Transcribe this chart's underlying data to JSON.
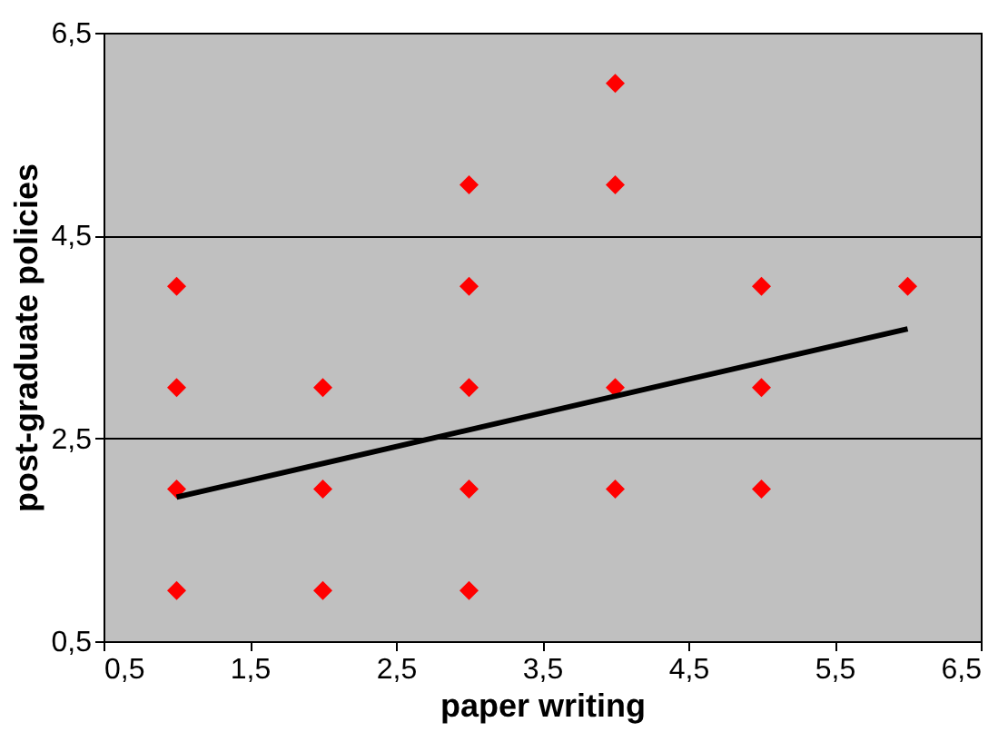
{
  "chart_data": {
    "type": "scatter",
    "xlabel": "paper writing",
    "ylabel": "post-graduate policies",
    "series": [
      {
        "color": "#ff0000",
        "marker": "diamond",
        "x": [
          1,
          1,
          1,
          1,
          2,
          2,
          2,
          3,
          3,
          3,
          3,
          3,
          4,
          4,
          4,
          4,
          5,
          5,
          5,
          6
        ],
        "values": [
          4,
          3,
          2,
          1,
          3,
          2,
          1,
          5,
          4,
          3,
          2,
          1,
          6,
          5,
          3,
          2,
          4,
          3,
          2,
          4
        ]
      },
      {
        "type": "line",
        "color": "#000000",
        "marker": "none",
        "x": [
          1,
          6
        ],
        "values": [
          1.92,
          3.58
        ]
      }
    ],
    "xlim": [
      0.5,
      6.5
    ],
    "ylim": [
      0.5,
      6.5
    ],
    "xticks": [
      {
        "value": 0.5,
        "label": "0,5"
      },
      {
        "value": 1.5,
        "label": "1,5"
      },
      {
        "value": 2.5,
        "label": "2,5"
      },
      {
        "value": 3.5,
        "label": "3,5"
      },
      {
        "value": 4.5,
        "label": "4,5"
      },
      {
        "value": 5.5,
        "label": "5,5"
      },
      {
        "value": 6.5,
        "label": "6,5"
      }
    ],
    "yticks": [
      {
        "value": 0.5,
        "label": "0,5"
      },
      {
        "value": 2.5,
        "label": "2,5"
      },
      {
        "value": 4.5,
        "label": "4,5"
      },
      {
        "value": 6.5,
        "label": "6,5"
      }
    ],
    "grid": "y",
    "legend": false
  }
}
